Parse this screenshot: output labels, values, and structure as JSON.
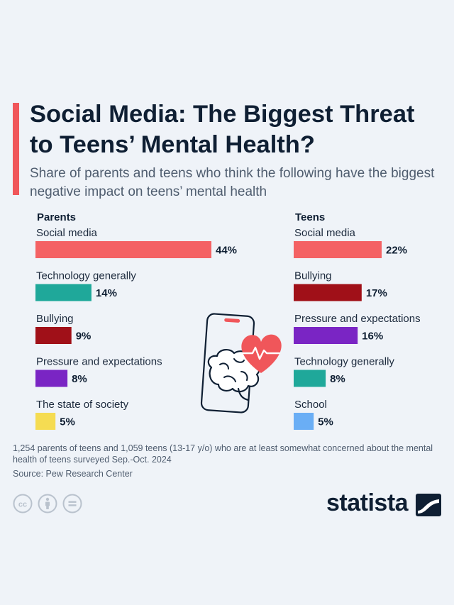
{
  "title": "Social Media: The Biggest Threat to Teens’ Mental Health?",
  "subtitle": "Share of parents and teens who think the following have the biggest negative impact on teens’ mental health",
  "footnote": "1,254 parents of teens and 1,059 teens (13-17 y/o) who are at least somewhat concerned about the mental health of teens surveyed Sep.-Oct. 2024",
  "source": "Source: Pew Research Center",
  "brand": "statista",
  "colors": {
    "accent": "#f0565a",
    "Social media": "#f46264",
    "Technology generally": "#1fa89a",
    "Bullying": "#a01018",
    "Pressure and expectations": "#7a25c4",
    "The state of society": "#f5dc52",
    "School": "#6aaef5"
  },
  "icons": [
    "creative-commons-icon",
    "attribution-icon",
    "no-derivatives-icon",
    "statista-logo-icon",
    "phone-brain-heart-illustration"
  ],
  "chart_data": [
    {
      "type": "bar",
      "title": "Parents",
      "unit": "%",
      "categories": [
        "Social media",
        "Technology generally",
        "Bullying",
        "Pressure and expectations",
        "The state of society"
      ],
      "values": [
        44,
        14,
        9,
        8,
        5
      ],
      "labels": [
        "44%",
        "14%",
        "9%",
        "8%",
        "5%"
      ]
    },
    {
      "type": "bar",
      "title": "Teens",
      "unit": "%",
      "categories": [
        "Social media",
        "Bullying",
        "Pressure and expectations",
        "Technology generally",
        "School"
      ],
      "values": [
        22,
        17,
        16,
        8,
        5
      ],
      "labels": [
        "22%",
        "17%",
        "16%",
        "8%",
        "5%"
      ]
    }
  ]
}
